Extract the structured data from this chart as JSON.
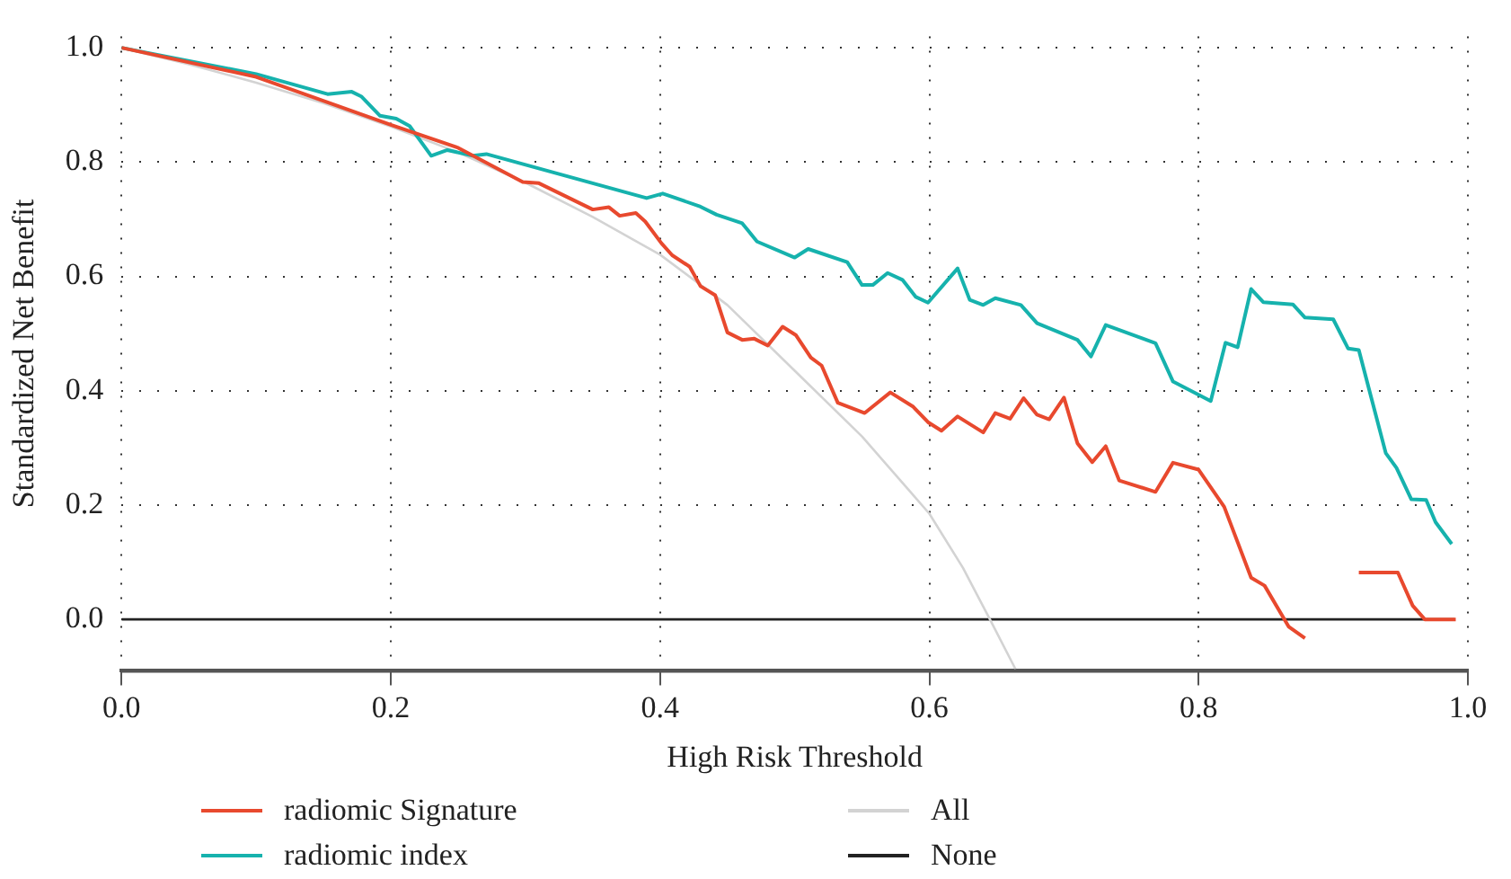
{
  "chart_data": {
    "type": "line",
    "xlabel": "High Risk Threshold",
    "ylabel": "Standardized Net Benefit",
    "xlim": [
      0,
      1
    ],
    "ylim": [
      -0.09,
      1.02
    ],
    "xticks": [
      {
        "value": 0,
        "label": "0.0"
      },
      0.2,
      0.4,
      0.6,
      0.8,
      {
        "value": 1,
        "label": "1.0"
      }
    ],
    "yticks": [
      {
        "value": 0,
        "label": "0.0"
      },
      0.2,
      0.4,
      0.6,
      0.8,
      {
        "value": 1,
        "label": "1.0"
      }
    ],
    "grid": true,
    "legend": "bottom",
    "marker": "none",
    "line_style": "solid",
    "series": [
      {
        "name": "radiomic Signature",
        "color": "#e8492e",
        "x": [
          0,
          0.1,
          0.2,
          0.25,
          0.298,
          0.31,
          0.35,
          0.362,
          0.37,
          0.382,
          0.389,
          0.401,
          0.409,
          0.422,
          0.43,
          0.441,
          0.45,
          0.461,
          0.47,
          0.48,
          0.491,
          0.501,
          0.512,
          0.52,
          0.532,
          0.552,
          0.571,
          0.588,
          0.599,
          0.609,
          0.621,
          0.64,
          0.649,
          0.66,
          0.67,
          0.68,
          0.689,
          0.7,
          0.71,
          0.721,
          0.731,
          0.741,
          0.768,
          0.781,
          0.8,
          0.819,
          0.839,
          0.849,
          0.867,
          0.879,
          0.887,
          0.913,
          0.919,
          0.948,
          0.959,
          0.968,
          0.991
        ],
        "values": [
          1.0,
          0.949,
          0.865,
          0.825,
          0.765,
          0.763,
          0.717,
          0.721,
          0.706,
          0.711,
          0.696,
          0.658,
          0.637,
          0.617,
          0.583,
          0.567,
          0.502,
          0.489,
          0.491,
          0.479,
          0.512,
          0.497,
          0.458,
          0.444,
          0.379,
          0.361,
          0.397,
          0.372,
          0.345,
          0.33,
          0.355,
          0.327,
          0.361,
          0.351,
          0.387,
          0.358,
          0.35,
          0.388,
          0.308,
          0.275,
          0.303,
          0.243,
          0.223,
          0.274,
          0.262,
          0.197,
          0.073,
          0.059,
          -0.013,
          -0.033,
          null,
          null,
          0.082,
          0.082,
          0.024,
          0.0,
          0.0
        ]
      },
      {
        "name": "radiomic index",
        "color": "#16b2ad",
        "x": [
          0,
          0.1,
          0.153,
          0.171,
          0.178,
          0.192,
          0.204,
          0.214,
          0.23,
          0.242,
          0.261,
          0.271,
          0.39,
          0.402,
          0.43,
          0.442,
          0.461,
          0.472,
          0.5,
          0.51,
          0.539,
          0.55,
          0.558,
          0.569,
          0.58,
          0.59,
          0.599,
          0.621,
          0.63,
          0.64,
          0.649,
          0.668,
          0.68,
          0.71,
          0.72,
          0.731,
          0.768,
          0.781,
          0.809,
          0.82,
          0.829,
          0.839,
          0.848,
          0.87,
          0.879,
          0.9,
          0.911,
          0.919,
          0.939,
          0.947,
          0.958,
          0.969,
          0.976,
          0.988
        ],
        "values": [
          1.0,
          0.954,
          0.919,
          0.923,
          0.915,
          0.881,
          0.876,
          0.863,
          0.811,
          0.821,
          0.811,
          0.814,
          0.737,
          0.745,
          0.722,
          0.708,
          0.693,
          0.661,
          0.633,
          0.648,
          0.625,
          0.585,
          0.585,
          0.606,
          0.594,
          0.564,
          0.554,
          0.614,
          0.559,
          0.55,
          0.562,
          0.55,
          0.518,
          0.489,
          0.46,
          0.515,
          0.483,
          0.416,
          0.382,
          0.484,
          0.476,
          0.578,
          0.555,
          0.551,
          0.528,
          0.525,
          0.474,
          0.471,
          0.291,
          0.265,
          0.21,
          0.209,
          0.17,
          0.132
        ]
      },
      {
        "name": "All",
        "color": "#d3d3d3",
        "x": [
          0,
          0.05,
          0.1,
          0.15,
          0.2,
          0.25,
          0.3,
          0.35,
          0.4,
          0.45,
          0.5,
          0.55,
          0.6,
          0.625,
          0.645,
          0.664
        ],
        "values": [
          1.0,
          0.971,
          0.939,
          0.903,
          0.862,
          0.817,
          0.764,
          0.704,
          0.638,
          0.55,
          0.435,
          0.32,
          0.185,
          0.09,
          0.0,
          -0.087
        ]
      },
      {
        "name": "None",
        "color": "#222222",
        "x": [
          0,
          0.99
        ],
        "values": [
          0,
          0
        ]
      }
    ]
  }
}
